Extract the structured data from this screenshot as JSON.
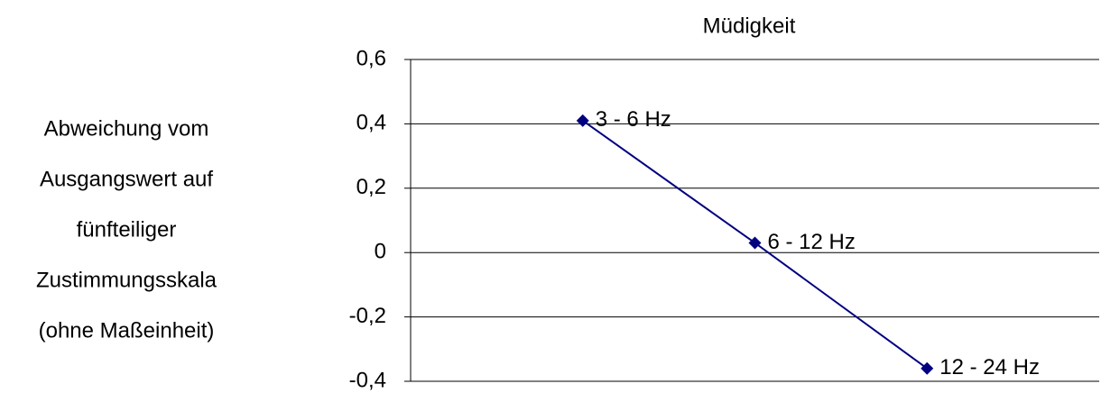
{
  "chart_data": {
    "type": "line",
    "title": "Müdigkeit",
    "ylabel": [
      "Abweichung vom",
      "Ausgangswert auf",
      "fünfteiliger",
      "Zustimmungsskala",
      "(ohne Maßeinheit)"
    ],
    "categories": [
      "3 - 6 Hz",
      "6 - 12 Hz",
      "12 - 24 Hz"
    ],
    "values": [
      0.41,
      0.03,
      -0.36
    ],
    "color": "#000080",
    "ylim": [
      -0.4,
      0.6
    ],
    "yticks": [
      {
        "value": 0.6,
        "label": "0,6"
      },
      {
        "value": 0.4,
        "label": "0,4"
      },
      {
        "value": 0.2,
        "label": "0,2"
      },
      0,
      {
        "value": -0.2,
        "label": "-0,2"
      },
      {
        "value": -0.4,
        "label": "-0,4"
      }
    ],
    "grid": true
  }
}
